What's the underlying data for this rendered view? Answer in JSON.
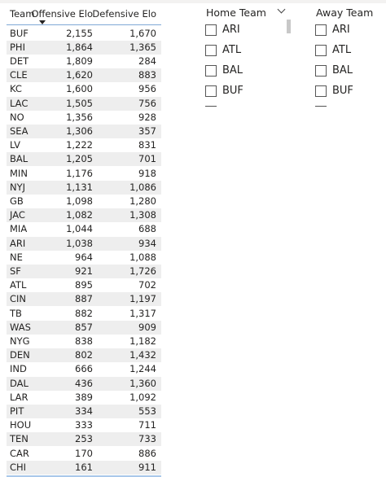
{
  "table": {
    "columns": [
      "Team",
      "Offensive Elo",
      "Defensive Elo"
    ],
    "rows": [
      [
        "BUF",
        "2,155",
        "1,670"
      ],
      [
        "PHI",
        "1,864",
        "1,365"
      ],
      [
        "DET",
        "1,809",
        "284"
      ],
      [
        "CLE",
        "1,620",
        "883"
      ],
      [
        "KC",
        "1,600",
        "956"
      ],
      [
        "LAC",
        "1,505",
        "756"
      ],
      [
        "NO",
        "1,356",
        "928"
      ],
      [
        "SEA",
        "1,306",
        "357"
      ],
      [
        "LV",
        "1,222",
        "831"
      ],
      [
        "BAL",
        "1,205",
        "701"
      ],
      [
        "MIN",
        "1,176",
        "918"
      ],
      [
        "NYJ",
        "1,131",
        "1,086"
      ],
      [
        "GB",
        "1,098",
        "1,280"
      ],
      [
        "JAC",
        "1,082",
        "1,308"
      ],
      [
        "MIA",
        "1,044",
        "688"
      ],
      [
        "ARI",
        "1,038",
        "934"
      ],
      [
        "NE",
        "964",
        "1,088"
      ],
      [
        "SF",
        "921",
        "1,726"
      ],
      [
        "ATL",
        "895",
        "702"
      ],
      [
        "CIN",
        "887",
        "1,197"
      ],
      [
        "TB",
        "882",
        "1,317"
      ],
      [
        "WAS",
        "857",
        "909"
      ],
      [
        "NYG",
        "838",
        "1,182"
      ],
      [
        "DEN",
        "802",
        "1,432"
      ],
      [
        "IND",
        "666",
        "1,244"
      ],
      [
        "DAL",
        "436",
        "1,360"
      ],
      [
        "LAR",
        "389",
        "1,092"
      ],
      [
        "PIT",
        "334",
        "553"
      ],
      [
        "HOU",
        "333",
        "711"
      ],
      [
        "TEN",
        "253",
        "733"
      ],
      [
        "CAR",
        "170",
        "886"
      ],
      [
        "CHI",
        "161",
        "911"
      ]
    ]
  },
  "slicers": [
    {
      "title": "Home Team",
      "items": [
        "ARI",
        "ATL",
        "BAL",
        "BUF"
      ]
    },
    {
      "title": "Away Team",
      "items": [
        "ARI",
        "ATL",
        "BAL",
        "BUF"
      ]
    }
  ]
}
